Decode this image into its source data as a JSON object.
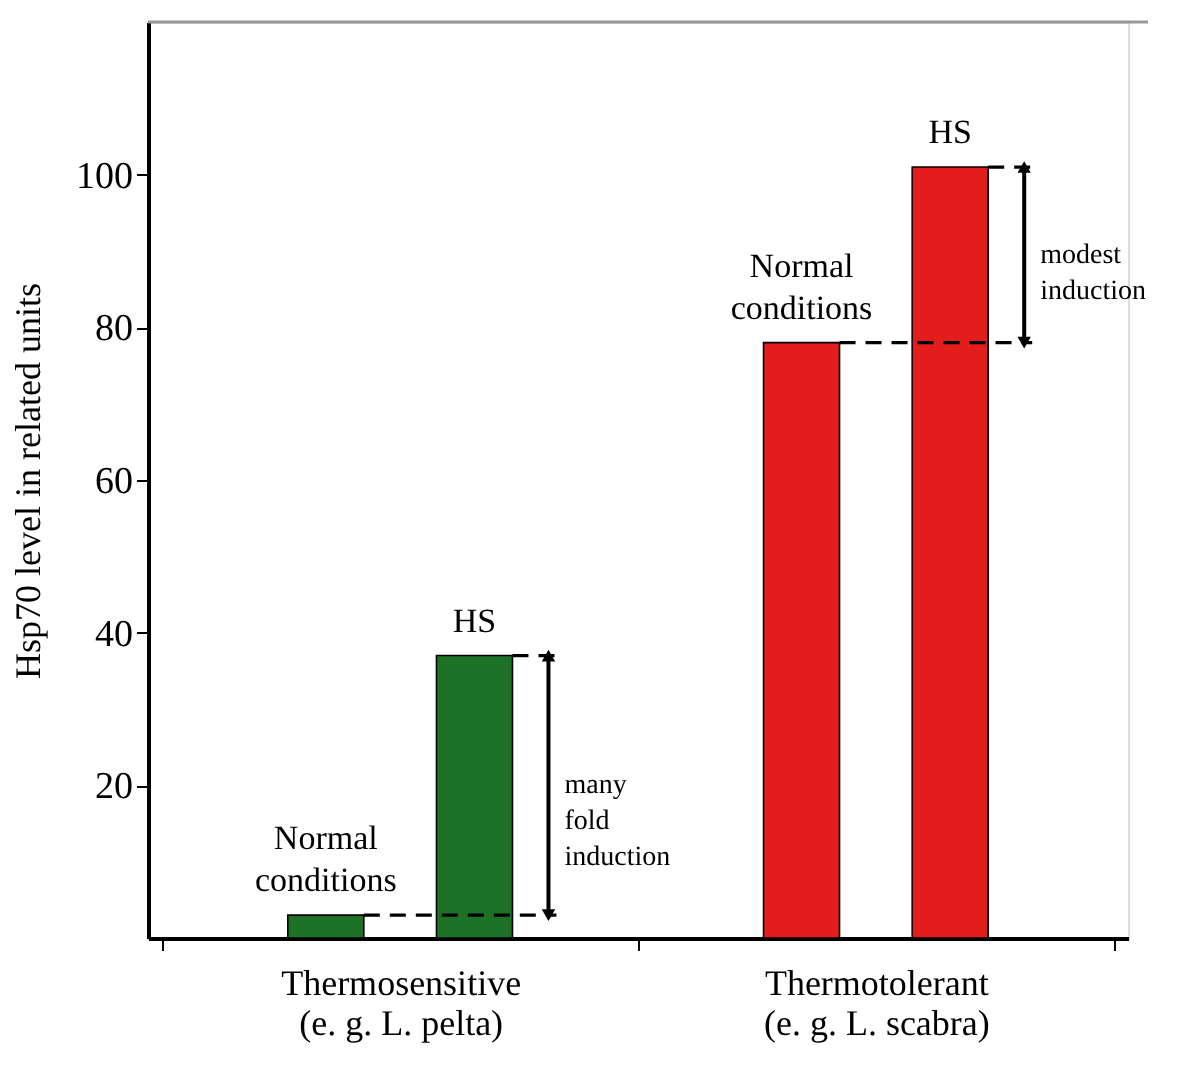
{
  "chart_data": {
    "type": "bar",
    "ylabel": "Hsp70 level in related units",
    "categories": [
      "Thermosensitive\n(e. g. L. pelta)",
      "Thermotolerant\n(e. g. L. scabra)"
    ],
    "series": [
      {
        "name": "Normal conditions",
        "colors": [
          "#1e7228",
          "#e31c1c"
        ],
        "values": [
          3,
          78
        ]
      },
      {
        "name": "HS",
        "colors": [
          "#1e7228",
          "#e31c1c"
        ],
        "values": [
          37,
          101
        ]
      }
    ],
    "ylim": [
      0,
      120
    ],
    "yticks": [
      20,
      40,
      60,
      80,
      100
    ],
    "annotations": [
      "many fold induction",
      "modest induction"
    ]
  }
}
